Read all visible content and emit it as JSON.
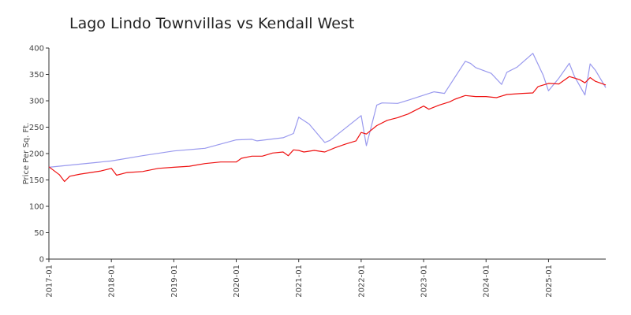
{
  "chart_data": {
    "type": "line",
    "title": "Lago Lindo Townvillas vs Kendall West",
    "xlabel": "",
    "ylabel": "Price Per Sq. Ft.",
    "xlim": [
      "2017-01",
      "2025-12"
    ],
    "ylim": [
      0,
      400
    ],
    "y_ticks": [
      0,
      50,
      100,
      150,
      200,
      250,
      300,
      350,
      400
    ],
    "x_ticks": [
      "2017-01",
      "2018-01",
      "2019-01",
      "2020-01",
      "2021-01",
      "2022-01",
      "2023-01",
      "2024-01",
      "2025-01"
    ],
    "grid": false,
    "legend": "none",
    "series": [
      {
        "color": "#9999ee",
        "points": [
          [
            "2017-01",
            174
          ],
          [
            "2017-07",
            180
          ],
          [
            "2018-01",
            186
          ],
          [
            "2018-07",
            196
          ],
          [
            "2019-01",
            205
          ],
          [
            "2019-07",
            210
          ],
          [
            "2020-01",
            226
          ],
          [
            "2020-04",
            227
          ],
          [
            "2020-05",
            224
          ],
          [
            "2020-10",
            230
          ],
          [
            "2020-12",
            238
          ],
          [
            "2021-01",
            269
          ],
          [
            "2021-03",
            256
          ],
          [
            "2021-06",
            221
          ],
          [
            "2021-07",
            225
          ],
          [
            "2022-01",
            272
          ],
          [
            "2022-02",
            215
          ],
          [
            "2022-04",
            292
          ],
          [
            "2022-05",
            296
          ],
          [
            "2022-08",
            295
          ],
          [
            "2022-10",
            301
          ],
          [
            "2023-03",
            317
          ],
          [
            "2023-05",
            314
          ],
          [
            "2023-09",
            375
          ],
          [
            "2023-10",
            371
          ],
          [
            "2023-11",
            363
          ],
          [
            "2024-02",
            352
          ],
          [
            "2024-04",
            331
          ],
          [
            "2024-05",
            354
          ],
          [
            "2024-07",
            364
          ],
          [
            "2024-10",
            390
          ],
          [
            "2024-12",
            348
          ],
          [
            "2025-01",
            319
          ],
          [
            "2025-03",
            343
          ],
          [
            "2025-05",
            371
          ],
          [
            "2025-06",
            346
          ],
          [
            "2025-08",
            311
          ],
          [
            "2025-09",
            370
          ],
          [
            "2025-10",
            358
          ],
          [
            "2025-12",
            325
          ]
        ]
      },
      {
        "color": "#ee1111",
        "points": [
          [
            "2017-01",
            175
          ],
          [
            "2017-03",
            160
          ],
          [
            "2017-04",
            147
          ],
          [
            "2017-05",
            157
          ],
          [
            "2017-07",
            161
          ],
          [
            "2017-09",
            164
          ],
          [
            "2017-11",
            167
          ],
          [
            "2018-01",
            172
          ],
          [
            "2018-02",
            159
          ],
          [
            "2018-04",
            164
          ],
          [
            "2018-07",
            166
          ],
          [
            "2018-10",
            172
          ],
          [
            "2019-01",
            174
          ],
          [
            "2019-04",
            176
          ],
          [
            "2019-07",
            181
          ],
          [
            "2019-10",
            184
          ],
          [
            "2020-01",
            184
          ],
          [
            "2020-02",
            191
          ],
          [
            "2020-04",
            195
          ],
          [
            "2020-06",
            195
          ],
          [
            "2020-08",
            201
          ],
          [
            "2020-10",
            203
          ],
          [
            "2020-11",
            196
          ],
          [
            "2020-12",
            207
          ],
          [
            "2021-01",
            206
          ],
          [
            "2021-02",
            203
          ],
          [
            "2021-04",
            206
          ],
          [
            "2021-06",
            203
          ],
          [
            "2021-08",
            211
          ],
          [
            "2021-10",
            218
          ],
          [
            "2021-12",
            224
          ],
          [
            "2022-01",
            240
          ],
          [
            "2022-02",
            237
          ],
          [
            "2022-04",
            253
          ],
          [
            "2022-06",
            263
          ],
          [
            "2022-08",
            268
          ],
          [
            "2022-10",
            275
          ],
          [
            "2023-01",
            290
          ],
          [
            "2023-02",
            284
          ],
          [
            "2023-04",
            292
          ],
          [
            "2023-06",
            298
          ],
          [
            "2023-07",
            303
          ],
          [
            "2023-09",
            310
          ],
          [
            "2023-11",
            308
          ],
          [
            "2024-01",
            308
          ],
          [
            "2024-03",
            306
          ],
          [
            "2024-05",
            312
          ],
          [
            "2024-08",
            314
          ],
          [
            "2024-10",
            315
          ],
          [
            "2024-11",
            327
          ],
          [
            "2025-01",
            333
          ],
          [
            "2025-03",
            332
          ],
          [
            "2025-05",
            346
          ],
          [
            "2025-07",
            340
          ],
          [
            "2025-08",
            334
          ],
          [
            "2025-09",
            344
          ],
          [
            "2025-10",
            337
          ],
          [
            "2025-12",
            330
          ]
        ]
      }
    ]
  }
}
